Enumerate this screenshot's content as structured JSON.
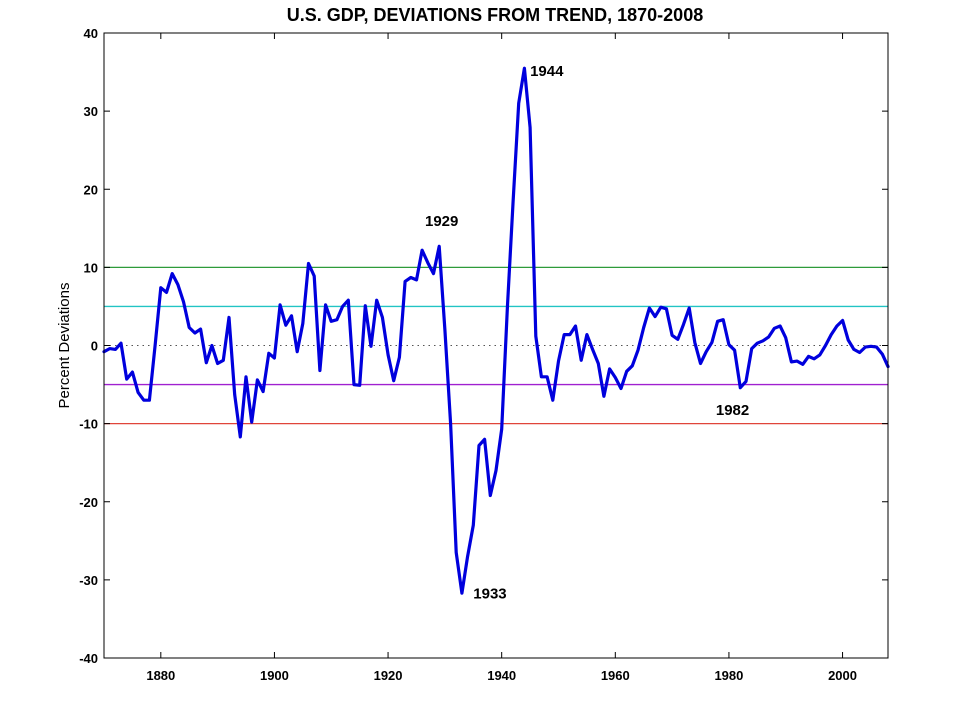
{
  "chart_data": {
    "type": "line",
    "title": "U.S. GDP, DEVIATIONS FROM TREND, 1870-2008",
    "xlabel": "",
    "ylabel": "Percent Deviations",
    "xlim": [
      1870,
      2008
    ],
    "ylim": [
      -40,
      40
    ],
    "xticks": [
      1880,
      1900,
      1920,
      1940,
      1960,
      1980,
      2000
    ],
    "yticks": [
      -40,
      -30,
      -20,
      -10,
      0,
      10,
      20,
      30,
      40
    ],
    "grid": false,
    "series": [
      {
        "color": "#0000dd",
        "x": [
          1870,
          1871,
          1872,
          1873,
          1874,
          1875,
          1876,
          1877,
          1878,
          1879,
          1880,
          1881,
          1882,
          1883,
          1884,
          1885,
          1886,
          1887,
          1888,
          1889,
          1890,
          1891,
          1892,
          1893,
          1894,
          1895,
          1896,
          1897,
          1898,
          1899,
          1900,
          1901,
          1902,
          1903,
          1904,
          1905,
          1906,
          1907,
          1908,
          1909,
          1910,
          1911,
          1912,
          1913,
          1914,
          1915,
          1916,
          1917,
          1918,
          1919,
          1920,
          1921,
          1922,
          1923,
          1924,
          1925,
          1926,
          1927,
          1928,
          1929,
          1930,
          1931,
          1932,
          1933,
          1934,
          1935,
          1936,
          1937,
          1938,
          1939,
          1940,
          1941,
          1942,
          1943,
          1944,
          1945,
          1946,
          1947,
          1948,
          1949,
          1950,
          1951,
          1952,
          1953,
          1954,
          1955,
          1956,
          1957,
          1958,
          1959,
          1960,
          1961,
          1962,
          1963,
          1964,
          1965,
          1966,
          1967,
          1968,
          1969,
          1970,
          1971,
          1972,
          1973,
          1974,
          1975,
          1976,
          1977,
          1978,
          1979,
          1980,
          1981,
          1982,
          1983,
          1984,
          1985,
          1986,
          1987,
          1988,
          1989,
          1990,
          1991,
          1992,
          1993,
          1994,
          1995,
          1996,
          1997,
          1998,
          1999,
          2000,
          2001,
          2002,
          2003,
          2004,
          2005,
          2006,
          2007,
          2008
        ],
        "y": [
          -0.8,
          -0.4,
          -0.5,
          0.3,
          -4.3,
          -3.4,
          -6.0,
          -7.0,
          -7.0,
          0.0,
          7.4,
          6.8,
          9.2,
          7.8,
          5.6,
          2.3,
          1.6,
          2.1,
          -2.2,
          0.0,
          -2.3,
          -1.9,
          3.6,
          -6.3,
          -11.7,
          -4.0,
          -9.8,
          -4.4,
          -5.9,
          -1.0,
          -1.6,
          5.2,
          2.6,
          3.8,
          -0.8,
          2.8,
          10.5,
          8.9,
          -3.2,
          5.2,
          3.1,
          3.3,
          5.0,
          5.8,
          -5.0,
          -5.1,
          5.1,
          -0.1,
          5.8,
          3.6,
          -1.2,
          -4.5,
          -1.5,
          8.2,
          8.7,
          8.4,
          12.2,
          10.6,
          9.2,
          12.7,
          2.0,
          -10.0,
          -26.5,
          -31.7,
          -27.0,
          -23.0,
          -12.8,
          -12.0,
          -19.2,
          -16.0,
          -10.7,
          4.9,
          18.2,
          31.0,
          35.5,
          27.9,
          1.2,
          -4.0,
          -4.0,
          -7.0,
          -2.0,
          1.4,
          1.4,
          2.5,
          -1.9,
          1.4,
          -0.5,
          -2.3,
          -6.5,
          -3.0,
          -4.1,
          -5.5,
          -3.3,
          -2.6,
          -0.6,
          2.3,
          4.8,
          3.7,
          4.9,
          4.7,
          1.3,
          0.8,
          2.7,
          4.8,
          0.4,
          -2.3,
          -0.8,
          0.4,
          3.1,
          3.3,
          0.1,
          -0.6,
          -5.4,
          -4.6,
          -0.4,
          0.3,
          0.6,
          1.1,
          2.2,
          2.5,
          1.0,
          -2.1,
          -2.0,
          -2.4,
          -1.4,
          -1.7,
          -1.2,
          0.0,
          1.4,
          2.5,
          3.2,
          0.7,
          -0.5,
          -0.9,
          -0.2,
          -0.1,
          -0.2,
          -1.1,
          -2.7
        ]
      }
    ],
    "reference_lines": [
      {
        "y": 10,
        "color": "#2e9b3a",
        "style": "solid"
      },
      {
        "y": 5,
        "color": "#22c4c4",
        "style": "solid"
      },
      {
        "y": 0,
        "color": "#555555",
        "style": "dotted"
      },
      {
        "y": -5,
        "color": "#a020d0",
        "style": "solid"
      },
      {
        "y": -10,
        "color": "#e0453a",
        "style": "solid"
      }
    ],
    "annotations": [
      {
        "text": "1944",
        "x": 1945.0,
        "y": 34.5
      },
      {
        "text": "1929",
        "x": 1926.5,
        "y": 15.3
      },
      {
        "text": "1933",
        "x": 1935.0,
        "y": -32.4
      },
      {
        "text": "1982",
        "x": 1977.7,
        "y": -8.9
      }
    ]
  }
}
